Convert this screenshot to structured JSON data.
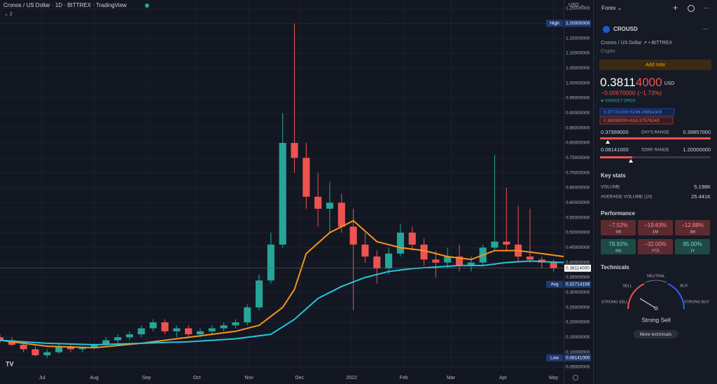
{
  "header": {
    "symbol": "Cronos / US Dollar",
    "interval": "1D",
    "exchange": "BITTREX",
    "source": "TradingView",
    "indicators": "2"
  },
  "chart_data": {
    "type": "candlestick",
    "currency": "USD",
    "grid": true,
    "up_color": "#26a69a",
    "down_color": "#ef5350",
    "x": [
      0,
      7,
      14,
      21,
      28,
      35,
      42,
      49,
      56,
      63,
      70,
      77,
      84,
      91,
      98,
      105,
      112,
      119,
      126,
      133,
      140,
      147,
      154,
      161,
      168,
      175,
      182,
      189,
      196,
      203,
      210,
      217,
      224,
      231,
      238,
      245,
      252,
      259,
      266,
      273,
      280,
      287,
      294,
      301,
      308,
      315,
      322,
      329
    ],
    "open": [
      0.15,
      0.14,
      0.125,
      0.11,
      0.09,
      0.1,
      0.12,
      0.11,
      0.115,
      0.125,
      0.14,
      0.15,
      0.16,
      0.18,
      0.2,
      0.17,
      0.18,
      0.16,
      0.17,
      0.18,
      0.19,
      0.2,
      0.25,
      0.34,
      0.46,
      0.8,
      0.75,
      0.62,
      0.58,
      0.6,
      0.52,
      0.46,
      0.42,
      0.38,
      0.43,
      0.5,
      0.46,
      0.41,
      0.4,
      0.42,
      0.39,
      0.4,
      0.45,
      0.47,
      0.46,
      0.42,
      0.41,
      0.4
    ],
    "high": [
      0.16,
      0.15,
      0.13,
      0.12,
      0.11,
      0.13,
      0.13,
      0.12,
      0.13,
      0.15,
      0.16,
      0.17,
      0.19,
      0.21,
      0.21,
      0.19,
      0.19,
      0.18,
      0.19,
      0.2,
      0.21,
      0.26,
      0.36,
      0.5,
      0.9,
      1.2,
      0.8,
      0.7,
      0.67,
      0.63,
      0.58,
      0.5,
      0.44,
      0.45,
      0.53,
      0.52,
      0.48,
      0.44,
      0.45,
      0.46,
      0.42,
      0.46,
      0.76,
      0.65,
      0.59,
      0.58,
      0.42,
      0.41
    ],
    "low": [
      0.13,
      0.12,
      0.1,
      0.085,
      0.08,
      0.095,
      0.1,
      0.1,
      0.11,
      0.12,
      0.13,
      0.14,
      0.15,
      0.17,
      0.16,
      0.15,
      0.15,
      0.15,
      0.16,
      0.17,
      0.18,
      0.19,
      0.24,
      0.33,
      0.45,
      0.7,
      0.58,
      0.52,
      0.5,
      0.5,
      0.24,
      0.4,
      0.33,
      0.36,
      0.42,
      0.44,
      0.39,
      0.35,
      0.38,
      0.37,
      0.37,
      0.39,
      0.44,
      0.44,
      0.4,
      0.4,
      0.38,
      0.37
    ],
    "close": [
      0.14,
      0.125,
      0.11,
      0.09,
      0.1,
      0.12,
      0.11,
      0.115,
      0.125,
      0.14,
      0.15,
      0.16,
      0.18,
      0.2,
      0.17,
      0.18,
      0.16,
      0.17,
      0.18,
      0.19,
      0.2,
      0.25,
      0.34,
      0.46,
      0.8,
      0.75,
      0.62,
      0.58,
      0.6,
      0.52,
      0.46,
      0.42,
      0.38,
      0.43,
      0.5,
      0.46,
      0.41,
      0.4,
      0.42,
      0.39,
      0.4,
      0.45,
      0.47,
      0.46,
      0.42,
      0.41,
      0.4,
      0.38114
    ],
    "lines": [
      {
        "color": "#f7931a",
        "x": [
          0,
          28,
          56,
          84,
          112,
          140,
          154,
          168,
          175,
          182,
          196,
          210,
          224,
          238,
          252,
          266,
          280,
          294,
          308,
          322,
          335
        ],
        "values": [
          0.14,
          0.12,
          0.115,
          0.13,
          0.15,
          0.17,
          0.19,
          0.25,
          0.31,
          0.43,
          0.5,
          0.54,
          0.47,
          0.45,
          0.44,
          0.42,
          0.41,
          0.44,
          0.44,
          0.43,
          0.42
        ]
      },
      {
        "color": "#26c6da",
        "x": [
          0,
          28,
          56,
          84,
          112,
          140,
          161,
          175,
          189,
          203,
          217,
          231,
          245,
          259,
          273,
          287,
          301,
          315,
          335
        ],
        "values": [
          0.14,
          0.13,
          0.125,
          0.13,
          0.135,
          0.145,
          0.16,
          0.21,
          0.28,
          0.32,
          0.35,
          0.37,
          0.38,
          0.385,
          0.39,
          0.39,
          0.4,
          0.405,
          0.4
        ]
      }
    ],
    "xlim": [
      0,
      335
    ],
    "ylim": [
      0.05,
      1.25
    ],
    "xticks": [
      {
        "value": 25,
        "label": "Jul"
      },
      {
        "value": 56,
        "label": "Aug"
      },
      {
        "value": 87,
        "label": "Sep"
      },
      {
        "value": 117,
        "label": "Oct"
      },
      {
        "value": 148,
        "label": "Nov"
      },
      {
        "value": 178,
        "label": "Dec"
      },
      {
        "value": 209,
        "label": "2022"
      },
      {
        "value": 240,
        "label": "Feb"
      },
      {
        "value": 268,
        "label": "Mar"
      },
      {
        "value": 299,
        "label": "Apr"
      },
      {
        "value": 329,
        "label": "May"
      }
    ],
    "yticks": [
      {
        "value": 0.05,
        "label": "0.05000000"
      },
      {
        "value": 0.1,
        "label": "0.10000000"
      },
      {
        "value": 0.15,
        "label": "0.15000000"
      },
      {
        "value": 0.2,
        "label": "0.20000000"
      },
      {
        "value": 0.25,
        "label": "0.25000000"
      },
      {
        "value": 0.3,
        "label": "0.30000000"
      },
      {
        "value": 0.35,
        "label": "0.35000000"
      },
      {
        "value": 0.4,
        "label": "0.40000000"
      },
      {
        "value": 0.45,
        "label": "0.45000000"
      },
      {
        "value": 0.5,
        "label": "0.50000000"
      },
      {
        "value": 0.55,
        "label": "0.55000000"
      },
      {
        "value": 0.6,
        "label": "0.60000000"
      },
      {
        "value": 0.65,
        "label": "0.65000000"
      },
      {
        "value": 0.7,
        "label": "0.70000000"
      },
      {
        "value": 0.75,
        "label": "0.75000000"
      },
      {
        "value": 0.8,
        "label": "0.80000000"
      },
      {
        "value": 0.85,
        "label": "0.85000000"
      },
      {
        "value": 0.9,
        "label": "0.90000000"
      },
      {
        "value": 0.95,
        "label": "0.95000000"
      },
      {
        "value": 1.0,
        "label": "1.00000000"
      },
      {
        "value": 1.05,
        "label": "1.05000000"
      },
      {
        "value": 1.1,
        "label": "1.10000000"
      },
      {
        "value": 1.15,
        "label": "1.15000000"
      },
      {
        "value": 1.2,
        "label": "1.20000000"
      },
      {
        "value": 1.25,
        "label": "1.25000000"
      }
    ],
    "price_labels": [
      {
        "tag": "High",
        "value": 1.2,
        "label": "1.20000000",
        "color": "#1e3a6e"
      },
      {
        "value": 0.38114,
        "label": "0.38114000",
        "color": "#ffffff"
      },
      {
        "tag": "Avg",
        "value": 0.32714156,
        "label": "0.32714156",
        "color": "#1e3a6e"
      },
      {
        "tag": "Low",
        "value": 0.08141,
        "label": "0.08141000",
        "color": "#1e3a6e"
      }
    ]
  },
  "panel": {
    "list": "Forex",
    "ticker": "CROUSD",
    "name": "Cronos / US Dollar",
    "exchange": "BITTREX",
    "category": "Crypto",
    "add_note": "Add note",
    "price_main": "0.3811",
    "price_tail": "4000",
    "currency": "USD",
    "change": "−0.00670000 (−1.73%)",
    "status": "MARKET OPEN",
    "bid": "0.37721000×5296.09854309",
    "ask": "0.38099000×618.37576243",
    "day_low": "0.37999000",
    "day_label": "DAY'S RANGE",
    "day_high": "0.39857000",
    "wk_low": "0.08141000",
    "wk_label": "52WK RANGE",
    "wk_high": "1.20000000",
    "key_stats": "Key stats",
    "volume_label": "VOLUME",
    "volume": "5.198K",
    "avg_volume_label": "AVERAGE VOLUME (10)",
    "avg_volume": "25.441K",
    "performance_title": "Performance",
    "performance": [
      {
        "value": "−7.52%",
        "period": "1W",
        "tone": "down"
      },
      {
        "value": "−19.63%",
        "period": "1M",
        "tone": "down"
      },
      {
        "value": "−12.88%",
        "period": "3M",
        "tone": "down"
      },
      {
        "value": "79.92%",
        "period": "6M",
        "tone": "up"
      },
      {
        "value": "−32.00%",
        "period": "YTD",
        "tone": "down"
      },
      {
        "value": "95.00%",
        "period": "1Y",
        "tone": "up"
      }
    ],
    "technicals_title": "Technicals",
    "sell": "SELL",
    "neutral": "NEUTRAL",
    "buy": "BUY",
    "strong_sell": "STRONG SELL",
    "strong_buy": "STRONG BUY",
    "rating": "Strong Sell",
    "more": "More technicals"
  }
}
